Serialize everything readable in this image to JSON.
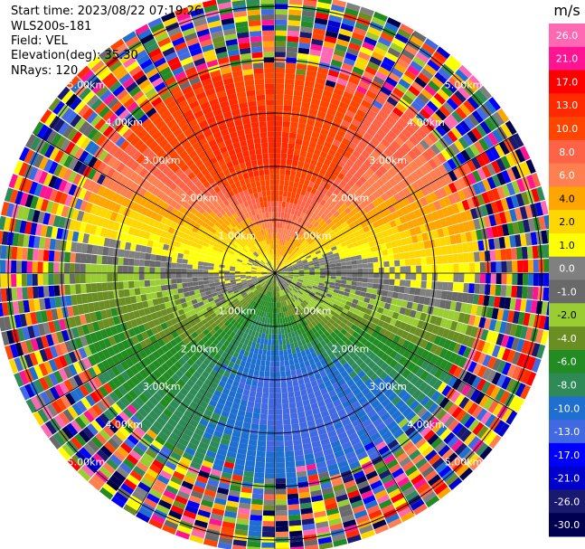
{
  "header": {
    "start_time": "Start time: 2023/08/22 07:19:26",
    "instrument": "WLS200s-181",
    "field": "Field: VEL",
    "elevation": "Elevation(deg): 35.30",
    "nrays": "NRays: 120"
  },
  "chart_data": {
    "type": "ppi",
    "field": "VEL",
    "units": "m/s",
    "nrays": 120,
    "elevation_deg": 35.3,
    "range_rings_km": [
      1.0,
      2.0,
      3.0,
      4.0,
      5.0
    ],
    "ring_labels": [
      "1.00km",
      "2.00km",
      "3.00km",
      "4.00km",
      "5.00km"
    ],
    "clean_range_km": 4.0,
    "wind_pattern": {
      "description": "positive (receding) velocities to the north, negative (approaching) to the south, transitioning through zero across the center",
      "northern_max_ms": 13.0,
      "southern_min_ms": -10.0
    },
    "colorbar": {
      "unit_label": "m/s",
      "tick_labels": [
        "26.0",
        "21.0",
        "17.0",
        "13.0",
        "10.0",
        "8.0",
        "6.0",
        "4.0",
        "2.0",
        "1.0",
        "0.0",
        "-1.0",
        "-2.0",
        "-4.0",
        "-6.0",
        "-8.0",
        "-10.0",
        "-13.0",
        "-17.0",
        "-21.0",
        "-26.0",
        "-30.0"
      ],
      "bins": [
        {
          "lo": 26,
          "hi": 30,
          "color": "#ff69b4"
        },
        {
          "lo": 21,
          "hi": 26,
          "color": "#ff1493"
        },
        {
          "lo": 17,
          "hi": 21,
          "color": "#ff0000"
        },
        {
          "lo": 13,
          "hi": 17,
          "color": "#ff2a00"
        },
        {
          "lo": 10,
          "hi": 13,
          "color": "#ff4500"
        },
        {
          "lo": 8,
          "hi": 10,
          "color": "#ff6347"
        },
        {
          "lo": 6,
          "hi": 8,
          "color": "#ff7f50"
        },
        {
          "lo": 4,
          "hi": 6,
          "color": "#ffa500"
        },
        {
          "lo": 2,
          "hi": 4,
          "color": "#ffd700"
        },
        {
          "lo": 1,
          "hi": 2,
          "color": "#ffff00"
        },
        {
          "lo": 0,
          "hi": 1,
          "color": "#808080"
        },
        {
          "lo": -1,
          "hi": 0,
          "color": "#696969"
        },
        {
          "lo": -2,
          "hi": -1,
          "color": "#9acd32"
        },
        {
          "lo": -4,
          "hi": -2,
          "color": "#6b8e23"
        },
        {
          "lo": -6,
          "hi": -4,
          "color": "#228b22"
        },
        {
          "lo": -8,
          "hi": -6,
          "color": "#2e8b57"
        },
        {
          "lo": -10,
          "hi": -8,
          "color": "#1e6fcf"
        },
        {
          "lo": -13,
          "hi": -10,
          "color": "#4169e1"
        },
        {
          "lo": -17,
          "hi": -13,
          "color": "#0000ff"
        },
        {
          "lo": -21,
          "hi": -17,
          "color": "#0000cd"
        },
        {
          "lo": -26,
          "hi": -21,
          "color": "#191970"
        },
        {
          "lo": -30,
          "hi": -26,
          "color": "#000050"
        }
      ]
    }
  }
}
